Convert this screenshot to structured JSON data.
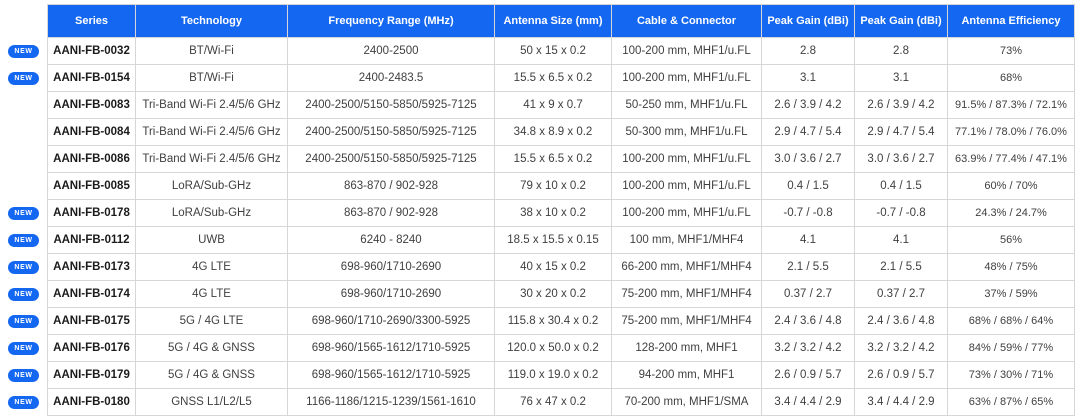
{
  "colors": {
    "header_bg": "#1467f0",
    "badge_bg": "#1467f0",
    "border": "#d6d6d6",
    "body_text": "#3f3f3f",
    "series_text": "#1b1b1b"
  },
  "table": {
    "new_badge_label": "NEW",
    "columns": [
      {
        "label": "Series"
      },
      {
        "label": "Technology"
      },
      {
        "label": "Frequency Range (MHz)"
      },
      {
        "label": "Antenna Size (mm)"
      },
      {
        "label": "Cable & Connector"
      },
      {
        "label": "Peak Gain (dBi)"
      },
      {
        "label": "Peak Gain (dBi)"
      },
      {
        "label": "Antenna Efficiency"
      }
    ],
    "rows": [
      {
        "new": true,
        "series": "AANI-FB-0032",
        "technology": "BT/Wi-Fi",
        "frequency": "2400-2500",
        "size": "50 x 15 x 0.2",
        "cable": "100-200 mm, MHF1/u.FL",
        "gain1": "2.8",
        "gain2": "2.8",
        "efficiency": "73%"
      },
      {
        "new": true,
        "series": "AANI-FB-0154",
        "technology": "BT/Wi-Fi",
        "frequency": "2400-2483.5",
        "size": "15.5 x 6.5 x 0.2",
        "cable": "100-200 mm, MHF1/u.FL",
        "gain1": "3.1",
        "gain2": "3.1",
        "efficiency": "68%"
      },
      {
        "new": false,
        "series": "AANI-FB-0083",
        "technology": "Tri-Band Wi-Fi 2.4/5/6 GHz",
        "frequency": "2400-2500/5150-5850/5925-7125",
        "size": "41 x 9 x 0.7",
        "cable": "50-250 mm, MHF1/u.FL",
        "gain1": "2.6 / 3.9 / 4.2",
        "gain2": "2.6 / 3.9 / 4.2",
        "efficiency": "91.5% / 87.3% / 72.1%"
      },
      {
        "new": false,
        "series": "AANI-FB-0084",
        "technology": "Tri-Band Wi-Fi 2.4/5/6 GHz",
        "frequency": "2400-2500/5150-5850/5925-7125",
        "size": "34.8 x 8.9 x 0.2",
        "cable": "50-300 mm, MHF1/u.FL",
        "gain1": "2.9 / 4.7 / 5.4",
        "gain2": "2.9 / 4.7 / 5.4",
        "efficiency": "77.1% / 78.0% / 76.0%"
      },
      {
        "new": false,
        "series": "AANI-FB-0086",
        "technology": "Tri-Band Wi-Fi 2.4/5/6 GHz",
        "frequency": "2400-2500/5150-5850/5925-7125",
        "size": "15.5 x 6.5 x 0.2",
        "cable": "100-200 mm, MHF1/u.FL",
        "gain1": "3.0 / 3.6 / 2.7",
        "gain2": "3.0 / 3.6 / 2.7",
        "efficiency": "63.9% / 77.4% / 47.1%"
      },
      {
        "new": false,
        "series": "AANI-FB-0085",
        "technology": "LoRA/Sub-GHz",
        "frequency": "863-870 / 902-928",
        "size": "79 x 10 x 0.2",
        "cable": "100-200 mm, MHF1/u.FL",
        "gain1": "0.4 / 1.5",
        "gain2": "0.4 / 1.5",
        "efficiency": "60% / 70%"
      },
      {
        "new": true,
        "series": "AANI-FB-0178",
        "technology": "LoRA/Sub-GHz",
        "frequency": "863-870 / 902-928",
        "size": "38 x 10 x 0.2",
        "cable": "100-200 mm, MHF1/u.FL",
        "gain1": "-0.7 / -0.8",
        "gain2": "-0.7 / -0.8",
        "efficiency": "24.3% / 24.7%"
      },
      {
        "new": true,
        "series": "AANI-FB-0112",
        "technology": "UWB",
        "frequency": "6240 - 8240",
        "size": "18.5 x 15.5 x 0.15",
        "cable": "100 mm, MHF1/MHF4",
        "gain1": "4.1",
        "gain2": "4.1",
        "efficiency": "56%"
      },
      {
        "new": true,
        "series": "AANI-FB-0173",
        "technology": "4G LTE",
        "frequency": "698-960/1710-2690",
        "size": "40 x 15 x 0.2",
        "cable": "66-200 mm, MHF1/MHF4",
        "gain1": "2.1 / 5.5",
        "gain2": "2.1 / 5.5",
        "efficiency": "48% / 75%"
      },
      {
        "new": true,
        "series": "AANI-FB-0174",
        "technology": "4G LTE",
        "frequency": "698-960/1710-2690",
        "size": "30 x 20 x 0.2",
        "cable": "75-200 mm, MHF1/MHF4",
        "gain1": "0.37 / 2.7",
        "gain2": "0.37 / 2.7",
        "efficiency": "37% / 59%"
      },
      {
        "new": true,
        "series": "AANI-FB-0175",
        "technology": "5G / 4G LTE",
        "frequency": "698-960/1710-2690/3300-5925",
        "size": "115.8 x 30.4 x 0.2",
        "cable": "75-200 mm, MHF1/MHF4",
        "gain1": "2.4 / 3.6 / 4.8",
        "gain2": "2.4 / 3.6 / 4.8",
        "efficiency": "68% / 68% / 64%"
      },
      {
        "new": true,
        "series": "AANI-FB-0176",
        "technology": "5G / 4G & GNSS",
        "frequency": "698-960/1565-1612/1710-5925",
        "size": "120.0 x 50.0 x 0.2",
        "cable": "128-200 mm, MHF1",
        "gain1": "3.2 / 3.2 / 4.2",
        "gain2": "3.2 / 3.2 / 4.2",
        "efficiency": "84% / 59% / 77%"
      },
      {
        "new": true,
        "series": "AANI-FB-0179",
        "technology": "5G / 4G & GNSS",
        "frequency": "698-960/1565-1612/1710-5925",
        "size": "119.0 x 19.0 x 0.2",
        "cable": "94-200 mm, MHF1",
        "gain1": "2.6 / 0.9 / 5.7",
        "gain2": "2.6 / 0.9 / 5.7",
        "efficiency": "73% / 30% / 71%"
      },
      {
        "new": true,
        "series": "AANI-FB-0180",
        "technology": "GNSS L1/L2/L5",
        "frequency": "1166-1186/1215-1239/1561-1610",
        "size": "76 x 47 x 0.2",
        "cable": "70-200 mm, MHF1/SMA",
        "gain1": "3.4 / 4.4 / 2.9",
        "gain2": "3.4 / 4.4 / 2.9",
        "efficiency": "63% / 87% / 65%"
      }
    ]
  }
}
